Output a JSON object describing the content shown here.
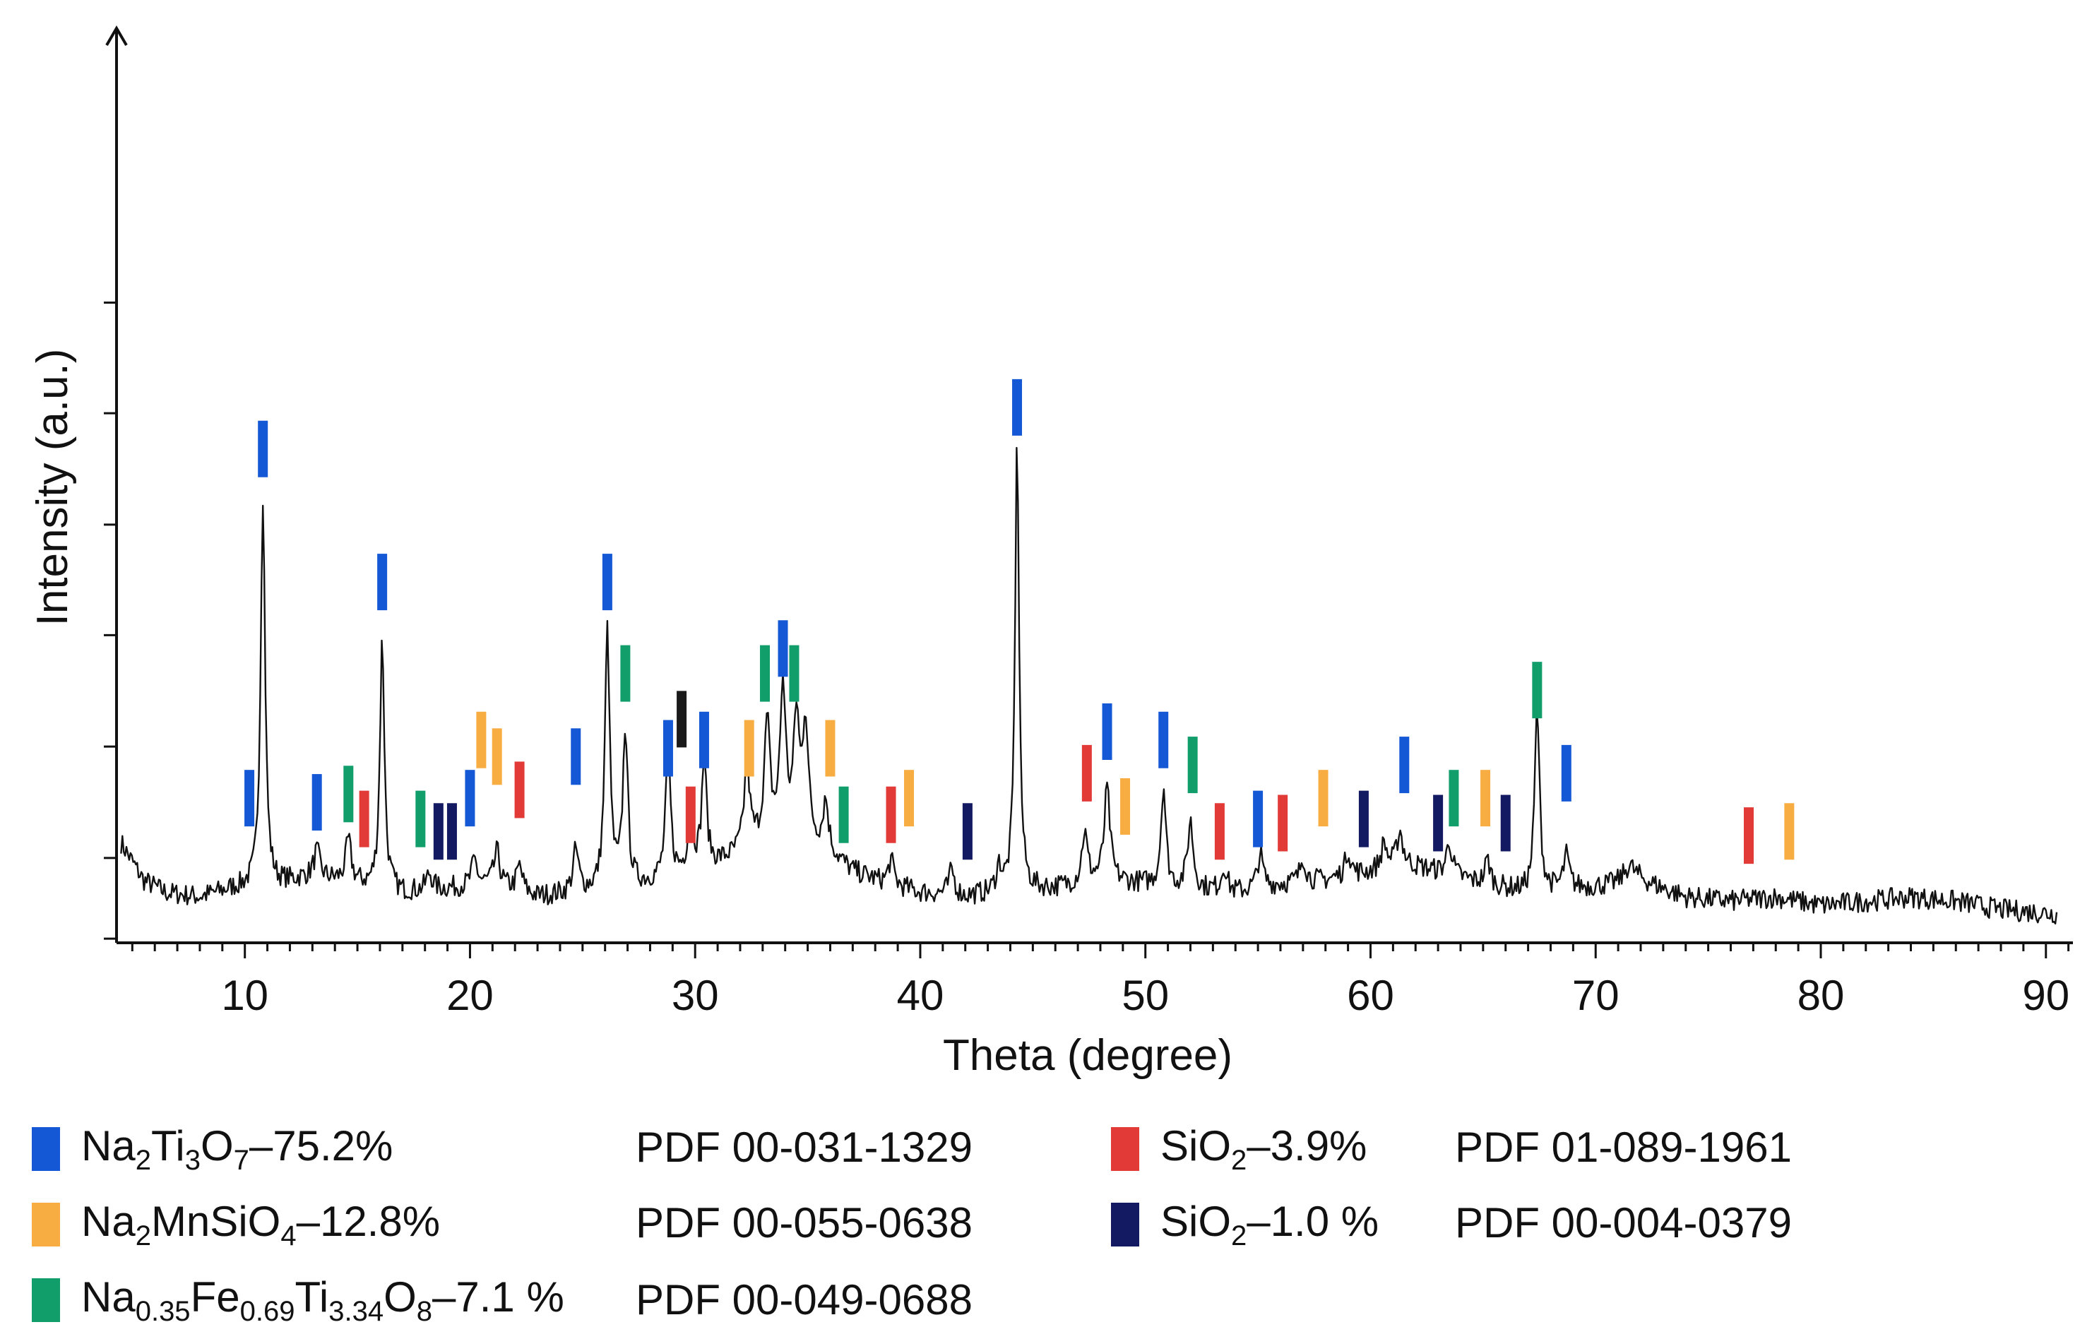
{
  "chart_data": {
    "type": "line",
    "title": "",
    "xlabel": "Theta (degree)",
    "ylabel": "Intensity (a.u.)",
    "xlim": [
      4.3,
      91.2
    ],
    "ylim": [
      -10,
      100
    ],
    "xticks": [
      10,
      20,
      30,
      40,
      50,
      60,
      70,
      80,
      90
    ],
    "yticks_count": 7,
    "series": [
      {
        "name": "XRD pattern",
        "color": "#111111",
        "baseline": [
          [
            4.5,
            2.0
          ],
          [
            5.5,
            -2.5
          ],
          [
            6.5,
            -4.0
          ],
          [
            8.0,
            -4.5
          ],
          [
            9.5,
            -3.5
          ],
          [
            11.5,
            -3.0
          ],
          [
            13.0,
            -2.0
          ],
          [
            15.0,
            -3.0
          ],
          [
            17.0,
            -4.0
          ],
          [
            19.0,
            -3.5
          ],
          [
            21.0,
            -3.0
          ],
          [
            23.0,
            -4.5
          ],
          [
            25.0,
            -4.0
          ],
          [
            27.0,
            -3.5
          ],
          [
            28.5,
            -2.5
          ],
          [
            30.0,
            -1.5
          ],
          [
            31.5,
            0.0
          ],
          [
            33.0,
            2.0
          ],
          [
            34.0,
            2.5
          ],
          [
            35.0,
            2.0
          ],
          [
            36.0,
            0.5
          ],
          [
            37.0,
            -1.5
          ],
          [
            38.5,
            -3.0
          ],
          [
            40.0,
            -4.0
          ],
          [
            42.0,
            -4.5
          ],
          [
            44.0,
            -4.0
          ],
          [
            46.0,
            -3.5
          ],
          [
            48.0,
            -2.5
          ],
          [
            50.0,
            -3.0
          ],
          [
            52.0,
            -3.5
          ],
          [
            54.0,
            -4.0
          ],
          [
            56.0,
            -3.0
          ],
          [
            58.0,
            -2.5
          ],
          [
            60.0,
            -1.5
          ],
          [
            61.5,
            -0.5
          ],
          [
            63.0,
            -1.5
          ],
          [
            65.0,
            -3.0
          ],
          [
            67.0,
            -4.0
          ],
          [
            69.0,
            -3.5
          ],
          [
            71.0,
            -3.0
          ],
          [
            72.0,
            -2.5
          ],
          [
            74.0,
            -4.5
          ],
          [
            76.0,
            -5.0
          ],
          [
            78.0,
            -4.5
          ],
          [
            80.0,
            -5.5
          ],
          [
            82.0,
            -5.0
          ],
          [
            84.0,
            -4.5
          ],
          [
            86.0,
            -5.0
          ],
          [
            88.0,
            -6.0
          ],
          [
            90.5,
            -6.5
          ]
        ],
        "peaks": [
          [
            10.8,
            47,
            0.12
          ],
          [
            13.2,
            3,
            0.15
          ],
          [
            14.6,
            5,
            0.15
          ],
          [
            16.1,
            30,
            0.12
          ],
          [
            18.2,
            2,
            0.15
          ],
          [
            20.2,
            3,
            0.15
          ],
          [
            21.2,
            4,
            0.15
          ],
          [
            22.2,
            3,
            0.15
          ],
          [
            24.7,
            5,
            0.15
          ],
          [
            26.1,
            31,
            0.13
          ],
          [
            26.9,
            19,
            0.13
          ],
          [
            28.8,
            15,
            0.13
          ],
          [
            29.8,
            8,
            0.13
          ],
          [
            30.4,
            13,
            0.13
          ],
          [
            32.3,
            10,
            0.15
          ],
          [
            33.2,
            14,
            0.15
          ],
          [
            33.9,
            18,
            0.15
          ],
          [
            34.5,
            14,
            0.15
          ],
          [
            34.9,
            14,
            0.15
          ],
          [
            35.8,
            6,
            0.15
          ],
          [
            38.7,
            3,
            0.15
          ],
          [
            41.4,
            3,
            0.15
          ],
          [
            43.5,
            3,
            0.15
          ],
          [
            44.3,
            54,
            0.11
          ],
          [
            47.3,
            6,
            0.15
          ],
          [
            48.3,
            11,
            0.15
          ],
          [
            50.8,
            12,
            0.13
          ],
          [
            52.0,
            8,
            0.15
          ],
          [
            53.5,
            3,
            0.15
          ],
          [
            55.1,
            4,
            0.15
          ],
          [
            57.0,
            3,
            0.15
          ],
          [
            59.0,
            3,
            0.15
          ],
          [
            60.6,
            3,
            0.15
          ],
          [
            61.3,
            4,
            0.15
          ],
          [
            63.5,
            4,
            0.15
          ],
          [
            65.2,
            3,
            0.15
          ],
          [
            67.4,
            22,
            0.13
          ],
          [
            68.7,
            4,
            0.15
          ],
          [
            71.5,
            2,
            0.3
          ]
        ]
      }
    ],
    "phases": [
      {
        "name": "Na2Ti3O7",
        "percent": "75.2%",
        "color": "#1558d6",
        "positions": [
          10.2,
          10.8,
          13.2,
          16.1,
          20.0,
          24.7,
          26.1,
          28.8,
          30.4,
          33.9,
          44.3,
          48.3,
          50.8,
          55.0,
          61.5,
          68.7
        ],
        "levels": [
          4,
          46,
          3.5,
          30,
          4,
          9,
          30,
          10,
          11,
          22,
          51,
          12,
          11,
          1.5,
          8,
          7
        ]
      },
      {
        "name": "Na2MnSiO4",
        "percent": "12.8%",
        "color": "#f8ad42",
        "positions": [
          20.5,
          21.2,
          32.4,
          36.0,
          39.5,
          49.1,
          57.9,
          65.1,
          78.6
        ],
        "levels": [
          11,
          9,
          10,
          10,
          4,
          3,
          4,
          4,
          0
        ]
      },
      {
        "name": "Na0.35Fe0.69Ti3.34O8",
        "percent": "7.1%",
        "color": "#119e6b",
        "positions": [
          14.6,
          17.8,
          26.9,
          33.1,
          34.4,
          36.6,
          52.1,
          63.7,
          67.4
        ],
        "levels": [
          4.5,
          1.5,
          19,
          19,
          19,
          2,
          8,
          4,
          17
        ]
      },
      {
        "name": "SiO2",
        "percent": "3.9%",
        "color": "#e13a37",
        "positions": [
          15.3,
          22.2,
          29.8,
          38.7,
          47.4,
          53.3,
          56.1,
          76.8
        ],
        "levels": [
          1.5,
          5,
          2,
          2,
          7,
          0,
          1,
          -0.5
        ]
      },
      {
        "name": "SiO2",
        "percent": "1.0 %",
        "color": "#141a62",
        "positions": [
          18.6,
          19.2,
          42.1,
          59.7,
          63.0,
          66.0
        ],
        "levels": [
          0,
          0,
          0,
          1.5,
          1,
          1
        ]
      },
      {
        "name": "",
        "percent": "",
        "color": "#1a1a1a",
        "positions": [
          29.4
        ],
        "levels": [
          13.5
        ]
      }
    ]
  },
  "legend": [
    {
      "base": "Na",
      "sub1": "2",
      "mid1": "Ti",
      "sub2": "3",
      "mid2": "O",
      "sub3": "7",
      "value": "–75.2%",
      "pdf": "PDF 00-031-1329",
      "color": "#1558d6"
    },
    {
      "base": "Na",
      "sub1": "2",
      "mid1": "MnSiO",
      "sub2": "4",
      "value": "–12.8%",
      "pdf": "PDF 00-055-0638",
      "color": "#f8ad42"
    },
    {
      "base": "Na",
      "sub1": "0.35",
      "mid1": "Fe",
      "sub2": "0.69",
      "mid2": "Ti",
      "sub3": "3.34",
      "mid3": "O",
      "sub4": "8",
      "value": "–7.1 %",
      "pdf": "PDF 00-049-0688",
      "color": "#119e6b"
    },
    {
      "base": "SiO",
      "sub1": "2",
      "value": "–3.9%",
      "pdf": "PDF 01-089-1961",
      "color": "#e13a37"
    },
    {
      "base": "SiO",
      "sub1": "2",
      "value": "–1.0 %",
      "pdf": "PDF 00-004-0379",
      "color": "#141a62"
    }
  ]
}
